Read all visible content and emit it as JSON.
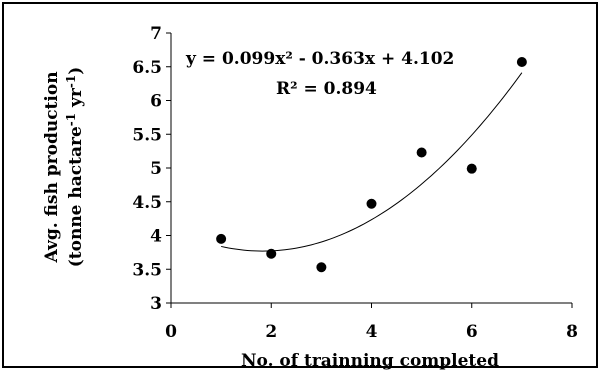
{
  "chart_data": {
    "type": "scatter",
    "title": "",
    "xlabel": "No. of trainning completed",
    "ylabel_line1": "Avg. fish production",
    "ylabel_line2_main": "(tonne hactare",
    "ylabel_line2_sup1": "-1",
    "ylabel_line2_mid": " yr",
    "ylabel_line2_sup2": "-1",
    "ylabel_line2_end": ")",
    "xlim": [
      0,
      8
    ],
    "ylim": [
      3,
      7
    ],
    "x_ticks": [
      0,
      2,
      4,
      6,
      8
    ],
    "x_tick_labels": [
      "0",
      "2",
      "4",
      "6",
      "8"
    ],
    "y_ticks": [
      3,
      3.5,
      4,
      4.5,
      5,
      5.5,
      6,
      6.5,
      7
    ],
    "y_tick_labels": [
      "3",
      "3.5",
      "4",
      "4.5",
      "5",
      "5.5",
      "6",
      "6.5",
      "7"
    ],
    "grid": false,
    "series": [
      {
        "x": [
          1,
          2,
          3,
          4,
          5,
          6,
          7
        ],
        "y": [
          3.95,
          3.73,
          3.53,
          4.47,
          5.23,
          4.99,
          6.57
        ]
      }
    ],
    "trendline": {
      "type": "polynomial",
      "coefficients": [
        0.099,
        -0.363,
        4.102
      ],
      "x_range": [
        1,
        7
      ]
    },
    "annotations": {
      "equation": "y = 0.099x² - 0.363x + 4.102",
      "r_squared": "R² = 0.894"
    }
  }
}
